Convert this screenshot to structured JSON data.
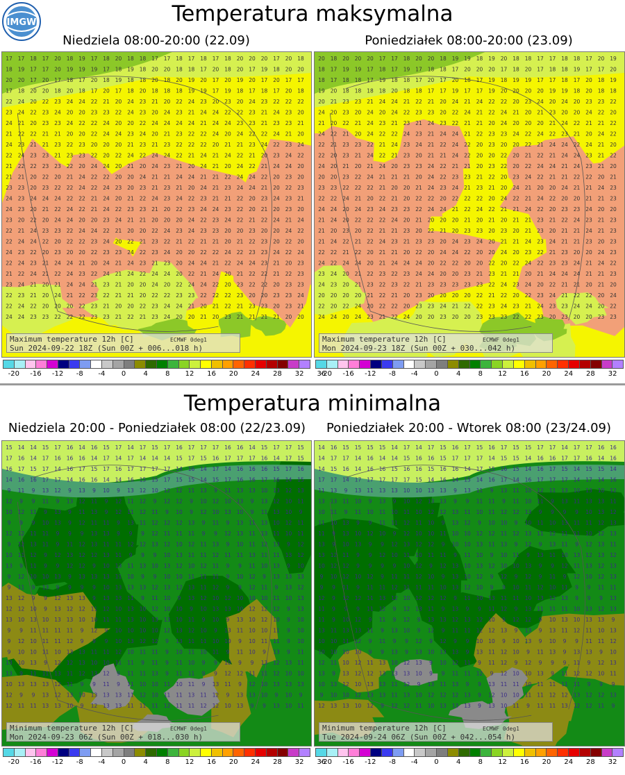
{
  "top": {
    "title": "Temperatura maksymalna",
    "left_subtitle": "Niedziela 08:00-20:00 (22.09)",
    "right_subtitle": "Poniedziałek 08:00-20:00 (23.09)",
    "left_caption_line1": "Maximum temperature 12h [C]",
    "left_caption_line2": "Sun 2024-09-22 18Z (Sun 00Z + 006...018 h)",
    "right_caption_line1": "Maximum temperature 12h [C]",
    "right_caption_line2": "Mon 2024-09-23 18Z (Sun 00Z + 030...042 h)"
  },
  "bottom": {
    "title": "Temperatura minimalna",
    "left_subtitle": "Niedziela 20:00 - Poniedziałek 08:00 (22/23.09)",
    "right_subtitle": "Poniedziałek 20:00 - Wtorek 08:00 (23/24.09)",
    "left_caption_line1": "Minimum temperature 12h [C]",
    "left_caption_line2": "Mon 2024-09-23 06Z (Sun 00Z + 018...030 h)",
    "right_caption_line1": "Minimum temperature 12h [C]",
    "right_caption_line2": "Tue 2024-09-24 06Z (Sun 00Z + 042...054 h)"
  },
  "model_tag": "ECMWF 0deg1",
  "logo_text": "IMGW",
  "scale": {
    "labels": [
      "-20",
      "-16",
      "-12",
      "-8",
      "-4",
      "0",
      "4",
      "8",
      "12",
      "16",
      "20",
      "24",
      "28",
      "32",
      "36"
    ],
    "colors": [
      "#55d8e6",
      "#a8f0f6",
      "#ffc4ee",
      "#ff7ed8",
      "#d400d4",
      "#000080",
      "#3a3af0",
      "#7e9cf2",
      "#ffffff",
      "#c8c8c8",
      "#a4a4a4",
      "#7e7e7e",
      "#8c8c00",
      "#2e6a00",
      "#008000",
      "#3cb43c",
      "#8ad424",
      "#ccf03c",
      "#ffff00",
      "#f0c000",
      "#ffa000",
      "#ff6400",
      "#ff3000",
      "#e60000",
      "#b40000",
      "#840000",
      "#c83cc8",
      "#b280ff"
    ]
  },
  "map_colors": {
    "max_warm": "#f2a078",
    "max_mid": "#f5f500",
    "max_cool": "#d6f050",
    "max_cold": "#8cc828",
    "min_dark": "#006e00",
    "min_mid": "#138a16",
    "min_teal": "#4aa070",
    "min_olive": "#8c8a14",
    "min_grey": "#8a8a8a",
    "min_light": "#c8f060"
  }
}
